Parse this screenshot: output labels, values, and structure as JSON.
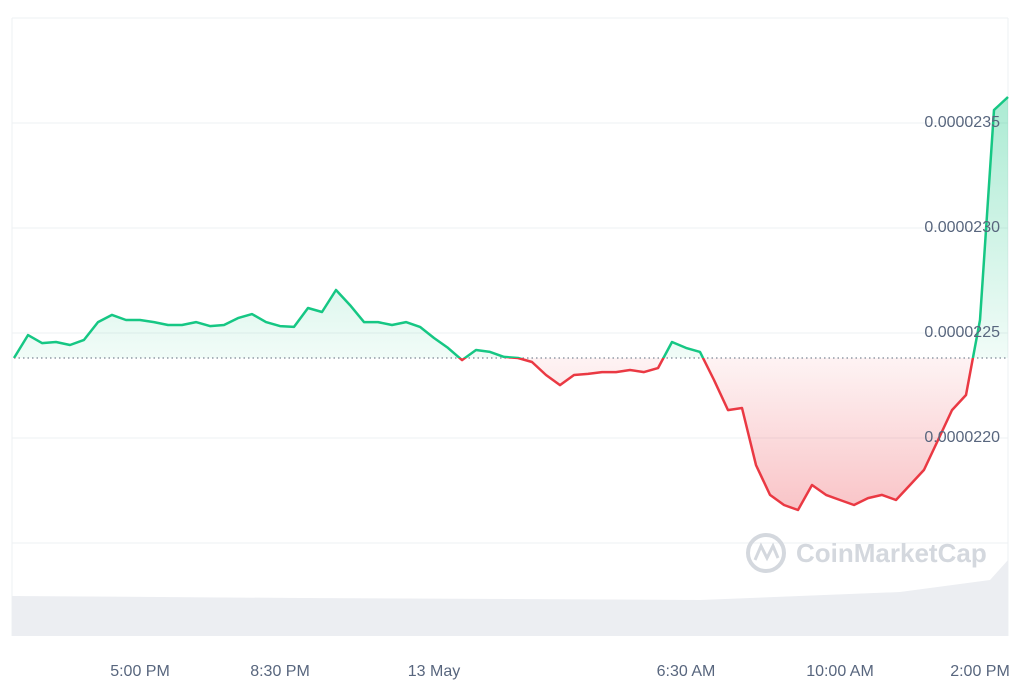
{
  "chart_data": {
    "type": "line",
    "categories": [
      null,
      null,
      null,
      null,
      null,
      null,
      null,
      null,
      null,
      "5:00 PM",
      null,
      null,
      null,
      null,
      null,
      null,
      null,
      null,
      null,
      "8:30 PM",
      null,
      null,
      null,
      null,
      null,
      null,
      null,
      null,
      null,
      null,
      "13 May",
      null,
      null,
      null,
      null,
      null,
      null,
      null,
      null,
      null,
      null,
      null,
      null,
      null,
      null,
      null,
      null,
      null,
      "6:30 AM",
      null,
      null,
      null,
      null,
      null,
      null,
      null,
      null,
      null,
      null,
      "10:00 AM",
      null,
      null,
      null,
      null,
      null,
      null,
      null,
      null,
      null,
      "2:00 PM",
      null,
      null
    ],
    "values": [
      2.2381e-05,
      2.249e-05,
      2.2452e-05,
      2.2457e-05,
      2.2443e-05,
      2.2467e-05,
      2.2552e-05,
      2.2586e-05,
      2.2562e-05,
      2.2562e-05,
      2.2552e-05,
      2.2538e-05,
      2.2538e-05,
      2.2552e-05,
      2.2533e-05,
      2.2538e-05,
      2.2571e-05,
      2.259e-05,
      2.2552e-05,
      2.2533e-05,
      2.2529e-05,
      2.2619e-05,
      2.26e-05,
      2.2705e-05,
      2.2633e-05,
      2.2552e-05,
      2.2552e-05,
      2.2538e-05,
      2.2552e-05,
      2.2529e-05,
      2.2476e-05,
      2.2429e-05,
      2.2371e-05,
      2.2419e-05,
      2.241e-05,
      2.2386e-05,
      2.2381e-05,
      2.2362e-05,
      2.23e-05,
      2.2252e-05,
      2.23e-05,
      2.2305e-05,
      2.2314e-05,
      2.2314e-05,
      2.2324e-05,
      2.2314e-05,
      2.2333e-05,
      2.2457e-05,
      2.2429e-05,
      2.241e-05,
      2.2276e-05,
      2.2133e-05,
      2.2143e-05,
      2.1871e-05,
      2.1729e-05,
      2.1681e-05,
      2.1657e-05,
      2.1776e-05,
      2.1729e-05,
      2.1705e-05,
      2.1681e-05,
      2.1714e-05,
      2.1729e-05,
      2.1705e-05,
      2.1776e-05,
      2.1848e-05,
      2.199e-05,
      2.2133e-05,
      2.2205e-05,
      2.2562e-05,
      2.3562e-05,
      2.3624e-05
    ],
    "baseline": 2.2381e-05,
    "up_color": "#16c784",
    "down_color": "#ea3943",
    "ylim": [
      2.15e-05,
      2.4e-05
    ],
    "yticks": [
      {
        "value": 2.2e-05,
        "label": "0.0000220"
      },
      {
        "value": 2.25e-05,
        "label": "0.0000225"
      },
      {
        "value": 2.3e-05,
        "label": "0.0000230"
      },
      {
        "value": 2.35e-05,
        "label": "0.0000235"
      }
    ],
    "grid": true,
    "watermark": "CoinMarketCap"
  }
}
